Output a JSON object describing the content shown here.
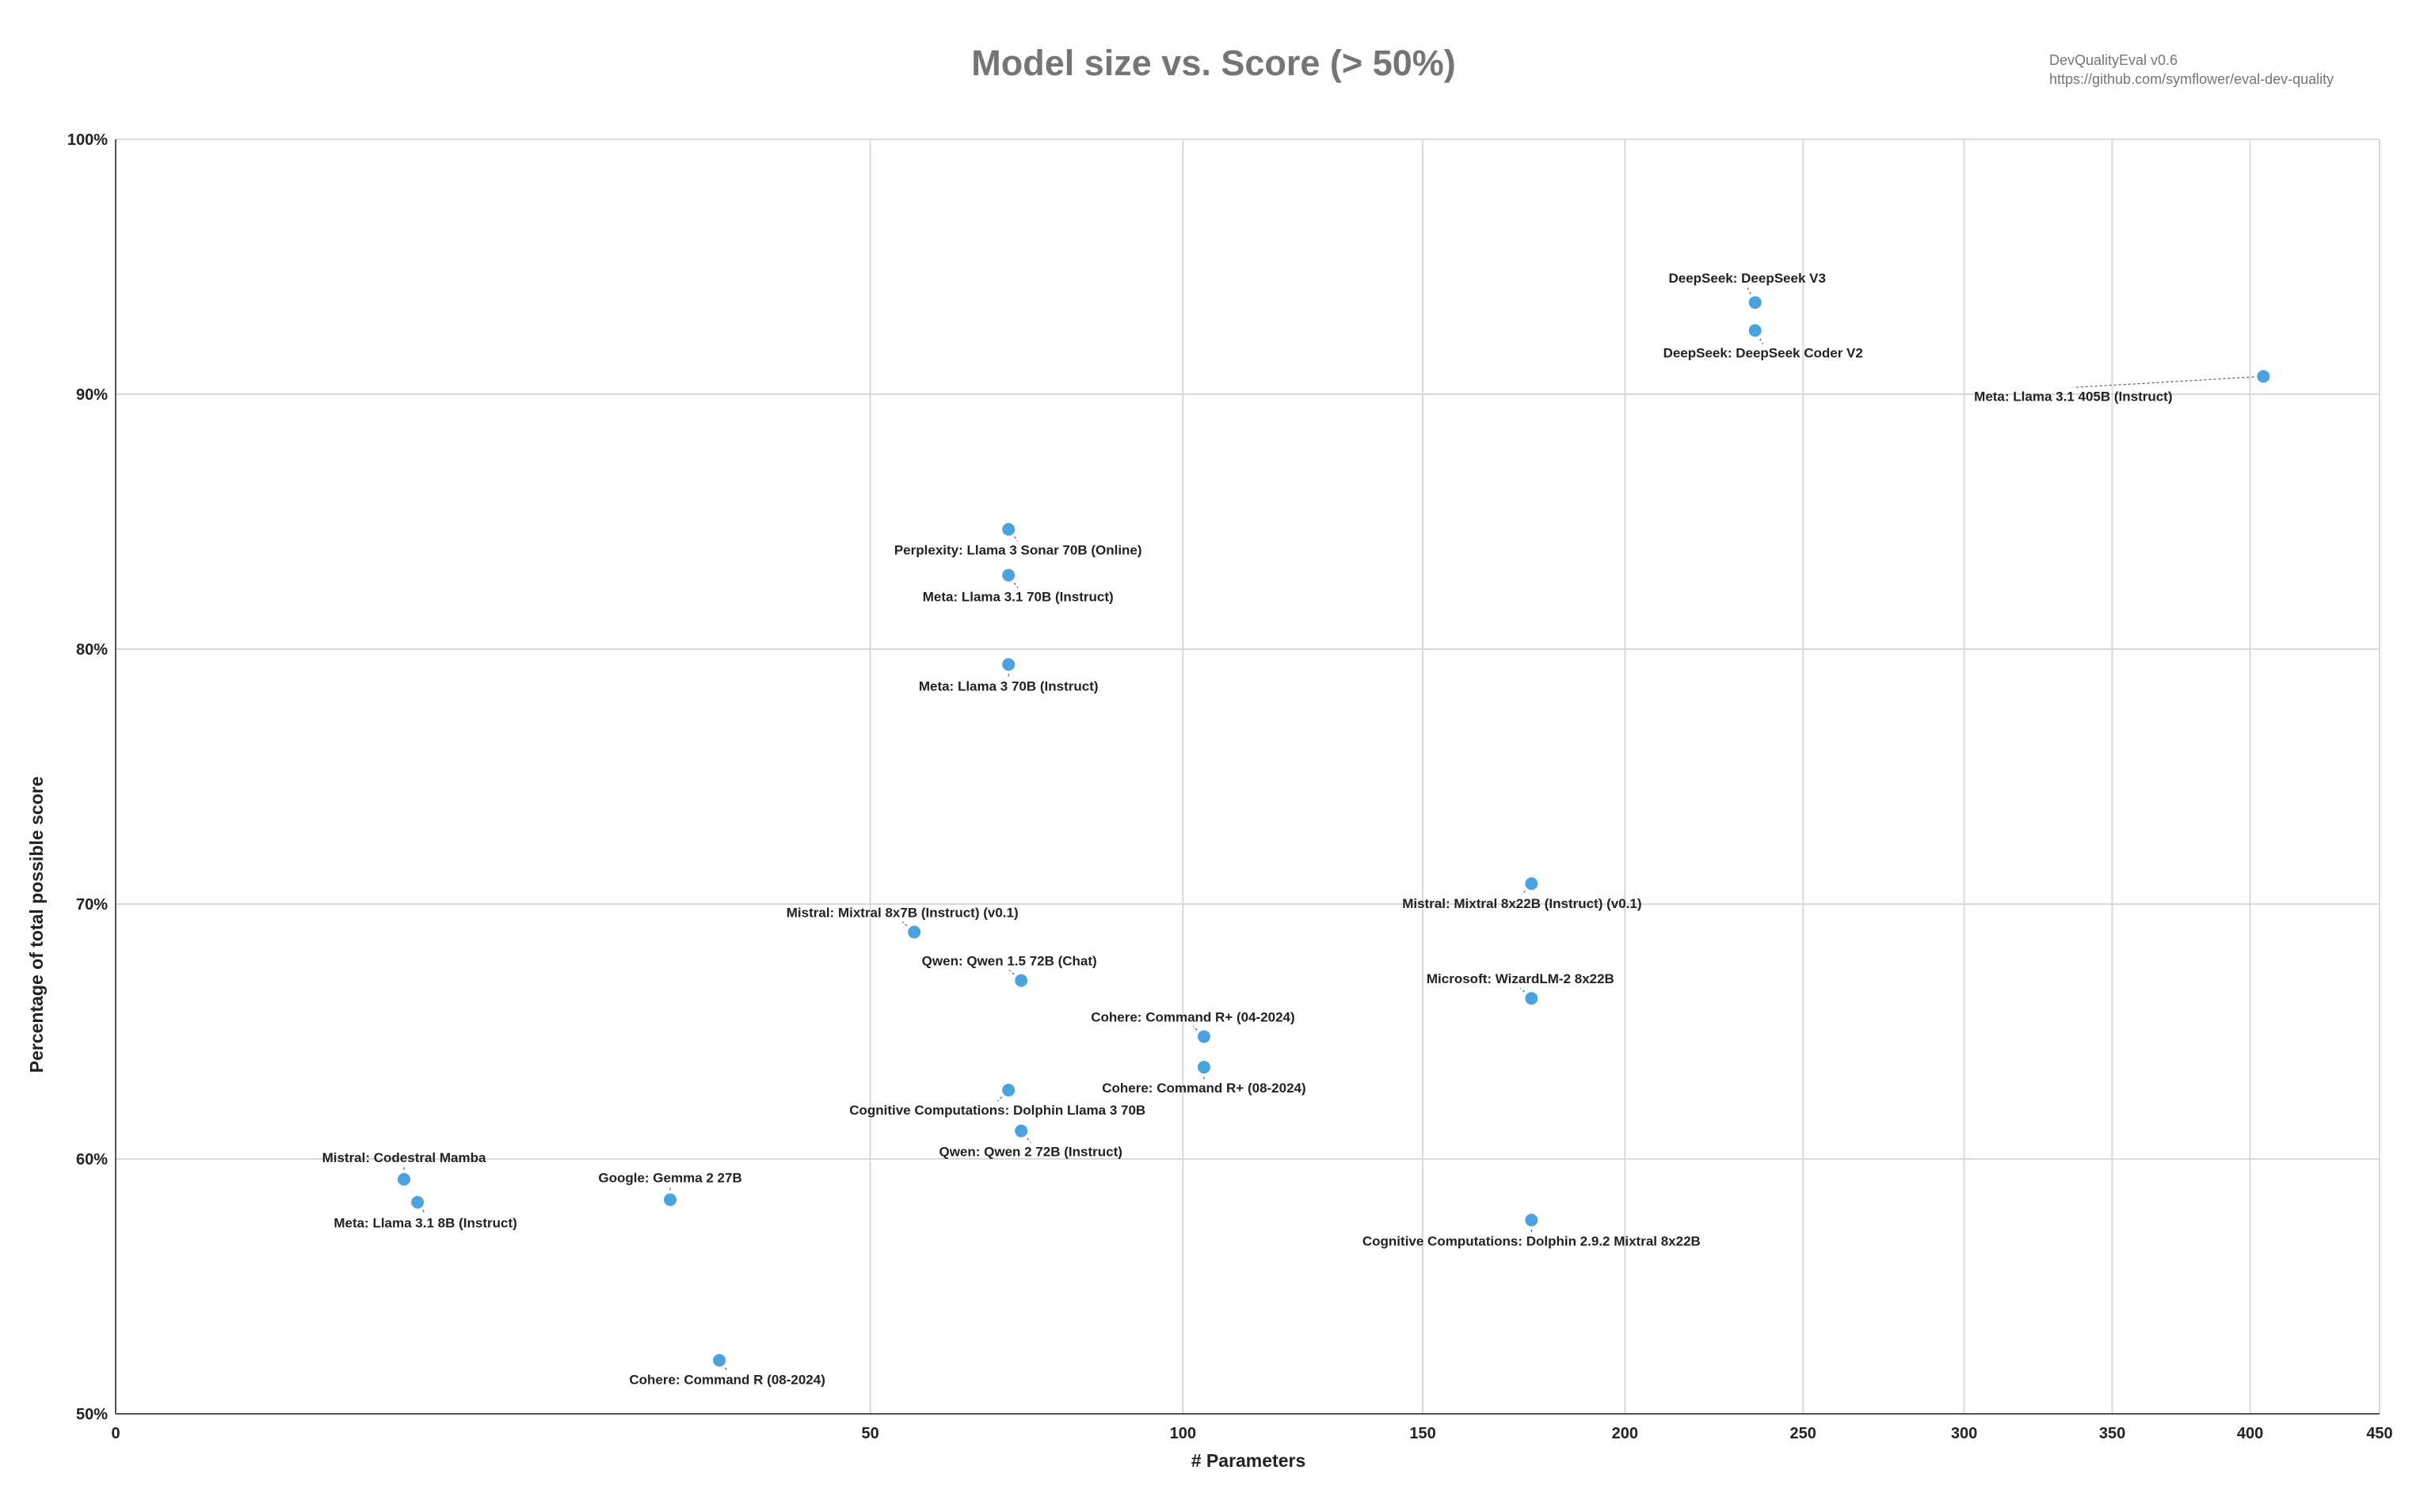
{
  "chart_data": {
    "type": "scatter",
    "title": "Model size vs. Score (> 50%)",
    "source": [
      "DevQualityEval v0.6",
      "https://github.com/symflower/eval-dev-quality"
    ],
    "xlabel": "# Parameters",
    "ylabel": "Percentage of total possible score",
    "x_scale": "sqrt",
    "xlim": [
      0,
      450
    ],
    "ylim": [
      50,
      100
    ],
    "x_ticks": [
      0,
      50,
      100,
      150,
      200,
      250,
      300,
      350,
      400,
      450
    ],
    "y_ticks": [
      50,
      60,
      70,
      80,
      90,
      100
    ],
    "y_tick_labels": [
      "50%",
      "60%",
      "70%",
      "80%",
      "90%",
      "100%"
    ],
    "grid": true,
    "legend": "none",
    "color": "#4aa3df",
    "points": [
      {
        "label": "DeepSeek: DeepSeek V3",
        "x": 236,
        "y": 93.6
      },
      {
        "label": "DeepSeek: DeepSeek Coder V2",
        "x": 236,
        "y": 92.5
      },
      {
        "label": "Meta: Llama 3.1 405B (Instruct)",
        "x": 405,
        "y": 90.7
      },
      {
        "label": "Perplexity: Llama 3 Sonar 70B (Online)",
        "x": 70,
        "y": 84.7
      },
      {
        "label": "Meta: Llama 3.1 70B (Instruct)",
        "x": 70,
        "y": 82.9
      },
      {
        "label": "Meta: Llama 3 70B (Instruct)",
        "x": 70,
        "y": 79.4
      },
      {
        "label": "Mistral: Mixtral 8x22B (Instruct) (v0.1)",
        "x": 176,
        "y": 70.8
      },
      {
        "label": "Mistral: Mixtral 8x7B (Instruct) (v0.1)",
        "x": 56,
        "y": 68.9
      },
      {
        "label": "Qwen: Qwen 1.5 72B (Chat)",
        "x": 72,
        "y": 67
      },
      {
        "label": "Microsoft: WizardLM-2 8x22B",
        "x": 176,
        "y": 66.3
      },
      {
        "label": "Cohere: Command R+ (04-2024)",
        "x": 104,
        "y": 64.8
      },
      {
        "label": "Cohere: Command R+ (08-2024)",
        "x": 104,
        "y": 63.6
      },
      {
        "label": "Cognitive Computations: Dolphin Llama 3 70B",
        "x": 70,
        "y": 62.7
      },
      {
        "label": "Qwen: Qwen 2 72B (Instruct)",
        "x": 72,
        "y": 61.1
      },
      {
        "label": "Mistral: Codestral Mamba",
        "x": 7.3,
        "y": 59.2
      },
      {
        "label": "Meta: Llama 3.1 8B (Instruct)",
        "x": 8,
        "y": 58.3
      },
      {
        "label": "Google: Gemma 2 27B",
        "x": 27,
        "y": 58.4
      },
      {
        "label": "Cognitive Computations: Dolphin 2.9.2 Mixtral 8x22B",
        "x": 176,
        "y": 57.6
      },
      {
        "label": "Cohere: Command R (08-2024)",
        "x": 32,
        "y": 52.1
      }
    ]
  }
}
